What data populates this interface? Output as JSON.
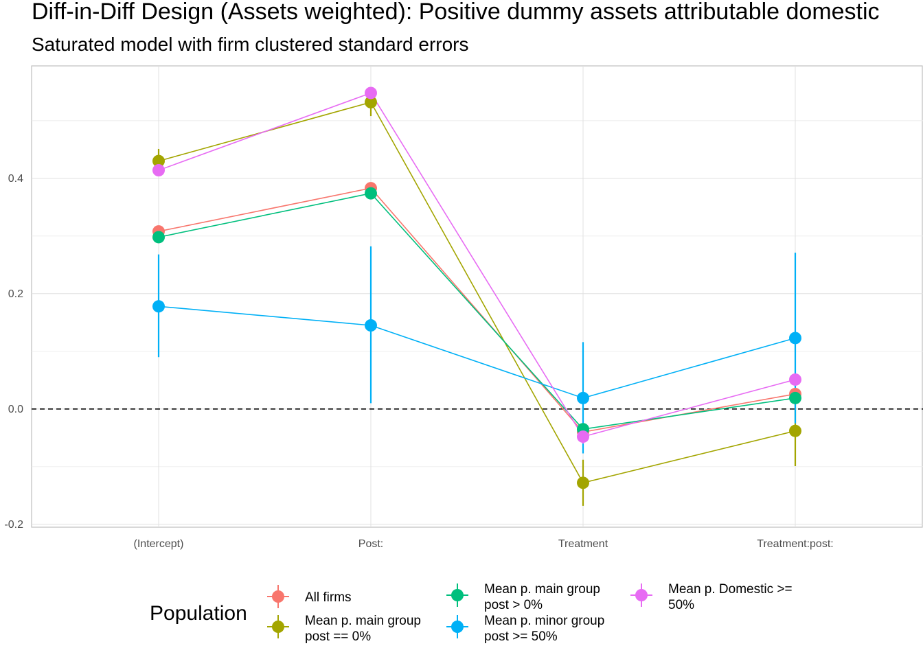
{
  "chart_data": {
    "type": "line",
    "title": "Diff-in-Diff Design (Assets weighted): Positive dummy assets attributable domestic",
    "subtitle": "Saturated model with firm clustered standard errors",
    "xlabel": "",
    "ylabel": "",
    "categories": [
      "(Intercept)",
      "Post:",
      "Treatment",
      "Treatment:post:"
    ],
    "ylim": [
      -0.205,
      0.595
    ],
    "yticks": [
      -0.2,
      0.0,
      0.2,
      0.4
    ],
    "ytick_labels": [
      "-0.2",
      "0.0",
      "0.2",
      "0.4"
    ],
    "reference_line": 0.0,
    "grid": true,
    "legend": {
      "title": "Population",
      "position": "bottom",
      "entries": [
        {
          "label_lines": [
            "All firms"
          ],
          "series": 0
        },
        {
          "label_lines": [
            "Mean p. main group",
            "post == 0%"
          ],
          "series": 1
        },
        {
          "label_lines": [
            "Mean p. main group",
            "post > 0%"
          ],
          "series": 2
        },
        {
          "label_lines": [
            "Mean p. minor group",
            "post >= 50%"
          ],
          "series": 3
        },
        {
          "label_lines": [
            "Mean p. Domestic >=",
            "50%"
          ],
          "series": 4
        }
      ]
    },
    "series": [
      {
        "name": "All firms",
        "color": "#F8766D",
        "values": [
          0.308,
          0.383,
          -0.04,
          0.026
        ],
        "lower": [
          0.3,
          0.375,
          -0.05,
          0.018
        ],
        "upper": [
          0.316,
          0.391,
          -0.03,
          0.034
        ]
      },
      {
        "name": "Mean p. main group post == 0%",
        "color": "#A3A500",
        "values": [
          0.43,
          0.532,
          -0.128,
          -0.038
        ],
        "lower": [
          0.41,
          0.508,
          -0.168,
          -0.099
        ],
        "upper": [
          0.451,
          0.555,
          -0.088,
          0.022
        ]
      },
      {
        "name": "Mean p. main group post > 0%",
        "color": "#00BF7D",
        "values": [
          0.298,
          0.374,
          -0.035,
          0.019
        ],
        "lower": [
          0.29,
          0.366,
          -0.045,
          0.01
        ],
        "upper": [
          0.306,
          0.382,
          -0.025,
          0.028
        ]
      },
      {
        "name": "Mean p. minor group post >= 50%",
        "color": "#00B0F6",
        "values": [
          0.178,
          0.145,
          0.019,
          0.123
        ],
        "lower": [
          0.09,
          0.01,
          -0.077,
          -0.025
        ],
        "upper": [
          0.268,
          0.282,
          0.116,
          0.271
        ]
      },
      {
        "name": "Mean p. Domestic >= 50%",
        "color": "#E76BF3",
        "values": [
          0.414,
          0.548,
          -0.048,
          0.051
        ],
        "lower": [
          0.404,
          0.538,
          -0.06,
          0.041
        ],
        "upper": [
          0.424,
          0.558,
          -0.036,
          0.061
        ]
      }
    ]
  }
}
